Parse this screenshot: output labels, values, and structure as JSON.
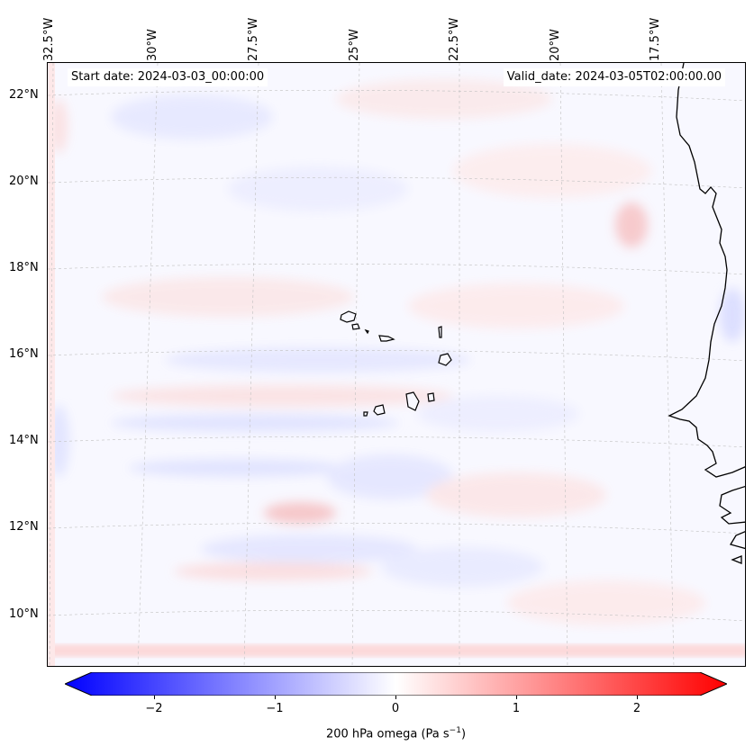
{
  "map": {
    "start_date": "Start date: 2024-03-03_00:00:00",
    "valid_date": "Valid_date: 2024-03-05T02:00:00.00",
    "lon_labels": [
      "32.5°W",
      "30°W",
      "27.5°W",
      "25°W",
      "22.5°W",
      "20°W",
      "17.5°W"
    ],
    "lat_labels": [
      "22°N",
      "20°N",
      "18°N",
      "16°N",
      "14°N",
      "12°N",
      "10°N"
    ],
    "colors": {
      "negative": "#0000ff",
      "neutral": "#ffffff",
      "positive": "#ff0000",
      "background": "#f8f8ff",
      "coast": "#000000",
      "grid": "#b0b0b0"
    }
  },
  "colorbar": {
    "ticks": [
      "−2",
      "−1",
      "0",
      "1",
      "2"
    ],
    "label": "200 hPa omega (Pa s",
    "label_sup": "−1",
    "label_end": ")",
    "vmin": -2.6,
    "vmax": 2.6
  }
}
